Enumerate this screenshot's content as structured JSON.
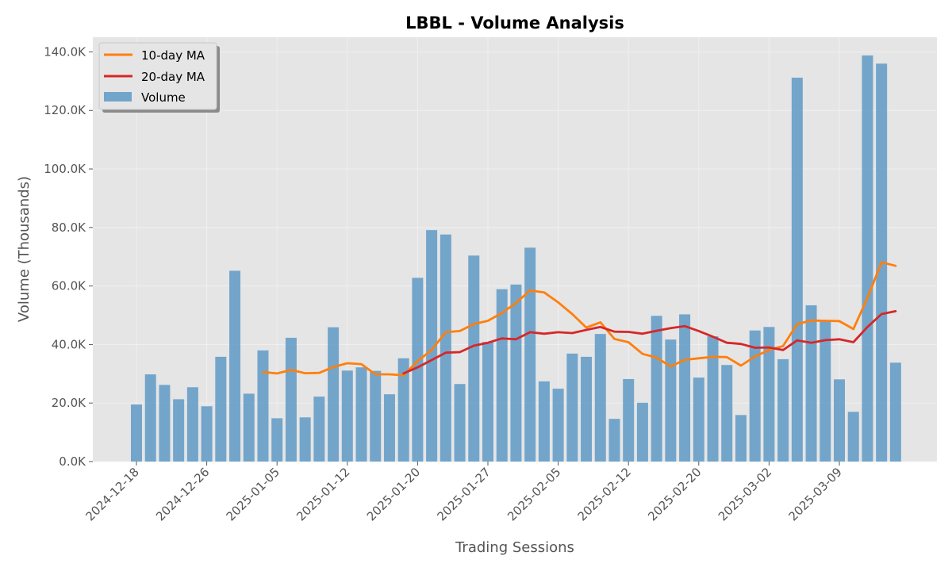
{
  "chart_data": {
    "type": "bar",
    "title": "LBBL - Volume Analysis",
    "xlabel": "Trading Sessions",
    "ylabel": "Volume (Thousands)",
    "ylim": [
      0,
      145000
    ],
    "y_ticks": [
      0,
      20000,
      40000,
      60000,
      80000,
      100000,
      120000,
      140000
    ],
    "y_tick_labels": [
      "0.0K",
      "20.0K",
      "40.0K",
      "60.0K",
      "80.0K",
      "100.0K",
      "120.0K",
      "140.0K"
    ],
    "x_tick_labels": [
      "2024-12-18",
      "2024-12-26",
      "2025-01-05",
      "2025-01-12",
      "2025-01-20",
      "2025-01-27",
      "2025-02-05",
      "2025-02-12",
      "2025-02-20",
      "2025-03-02",
      "2025-03-09"
    ],
    "x_tick_session_index": [
      0,
      5,
      10,
      15,
      20,
      25,
      30,
      35,
      40,
      45,
      50
    ],
    "grid": true,
    "legend_position": "top-left",
    "series": [
      {
        "name": "Volume",
        "kind": "bar",
        "color": "#4c8fc2",
        "values": [
          19500,
          29800,
          26200,
          21300,
          25400,
          18900,
          35800,
          65200,
          23200,
          38000,
          14800,
          42300,
          15100,
          22200,
          45900,
          31100,
          32200,
          31000,
          23000,
          35300,
          62800,
          79100,
          77600,
          26500,
          70400,
          40900,
          58900,
          60500,
          73100,
          27400,
          24900,
          36900,
          35800,
          43600,
          14600,
          28200,
          20100,
          49800,
          41700,
          50300,
          28700,
          42800,
          33000,
          15900,
          44800,
          46000,
          35000,
          131200,
          53400,
          48000,
          28100,
          17000,
          138800,
          136000,
          33800
        ]
      },
      {
        "name": "10-day MA",
        "kind": "line",
        "color": "#ff7f0e",
        "values": [
          null,
          null,
          null,
          null,
          null,
          null,
          null,
          null,
          null,
          30600,
          30100,
          31300,
          30200,
          30300,
          32300,
          33600,
          33300,
          29800,
          29800,
          29500,
          34300,
          38100,
          44200,
          44600,
          47000,
          48100,
          50800,
          54200,
          58500,
          57800,
          54400,
          50400,
          45800,
          47600,
          41900,
          40800,
          36800,
          35500,
          32500,
          34800,
          35300,
          35800,
          35700,
          32800,
          35900,
          38100,
          39500,
          47000,
          48200,
          48100,
          48000,
          45300,
          55900,
          68100,
          66900
        ]
      },
      {
        "name": "20-day MA",
        "kind": "line",
        "color": "#d62728",
        "values": [
          null,
          null,
          null,
          null,
          null,
          null,
          null,
          null,
          null,
          null,
          null,
          null,
          null,
          null,
          null,
          null,
          null,
          null,
          null,
          30100,
          32200,
          34700,
          37200,
          37400,
          39600,
          40600,
          42100,
          41800,
          44200,
          43700,
          44200,
          43900,
          45000,
          46000,
          44400,
          44300,
          43700,
          44700,
          45600,
          46300,
          44600,
          42700,
          40600,
          40200,
          38900,
          39000,
          38100,
          41400,
          40600,
          41500,
          41800,
          40800,
          46000,
          50400,
          51400
        ]
      }
    ]
  },
  "colors": {
    "plot_background": "#e5e5e5",
    "grid": "#f0f0f0",
    "axis_text": "#555555"
  }
}
